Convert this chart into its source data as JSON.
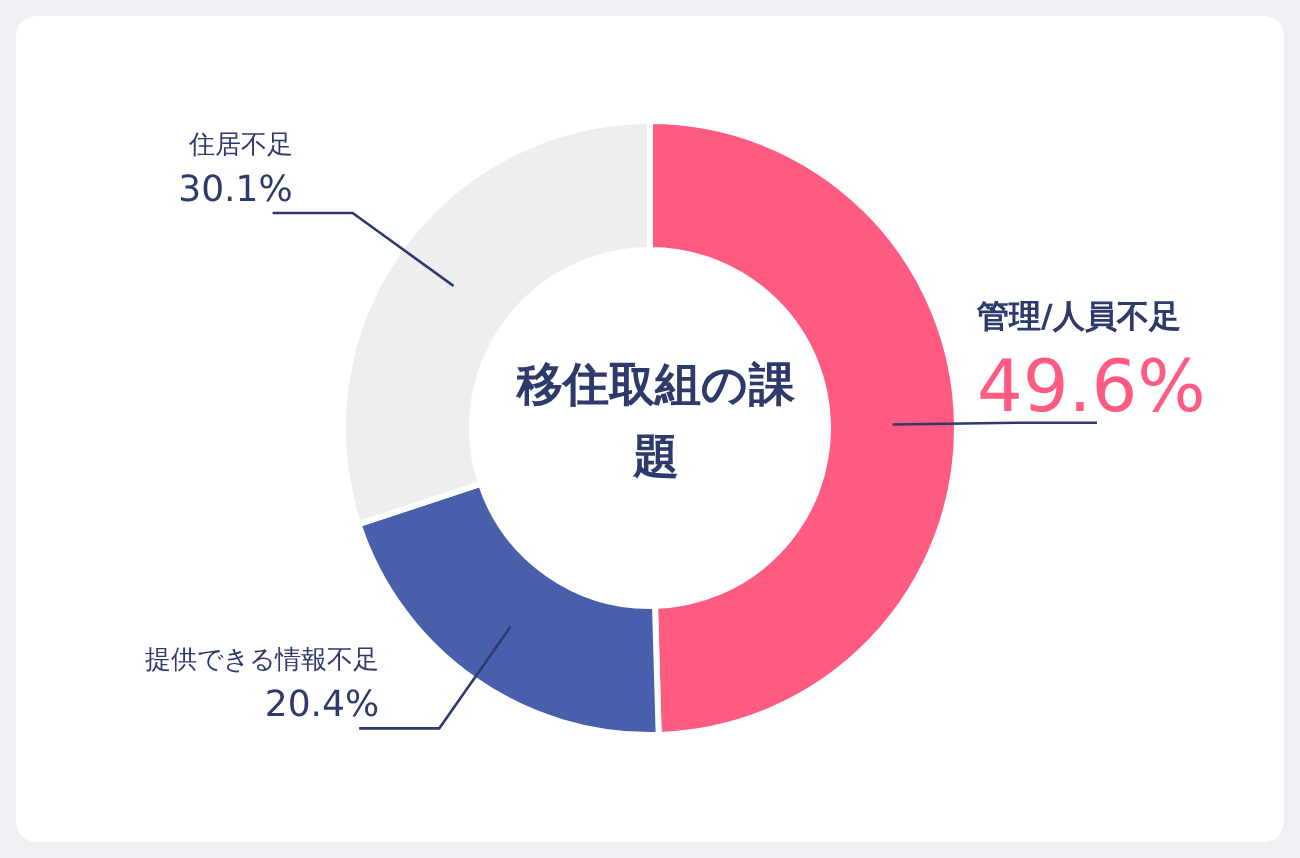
{
  "chart_data": {
    "type": "donut",
    "title": "移住取組の課題",
    "categories": [
      "管理/人員不足",
      "提供できる情報不足",
      "住居不足"
    ],
    "values": [
      49.6,
      20.4,
      30.1
    ],
    "colors": [
      "#ff5a80",
      "#4a5fab",
      "#eeeeee"
    ],
    "value_labels": [
      "49.6%",
      "20.4%",
      "30.1%"
    ],
    "legend": false
  }
}
